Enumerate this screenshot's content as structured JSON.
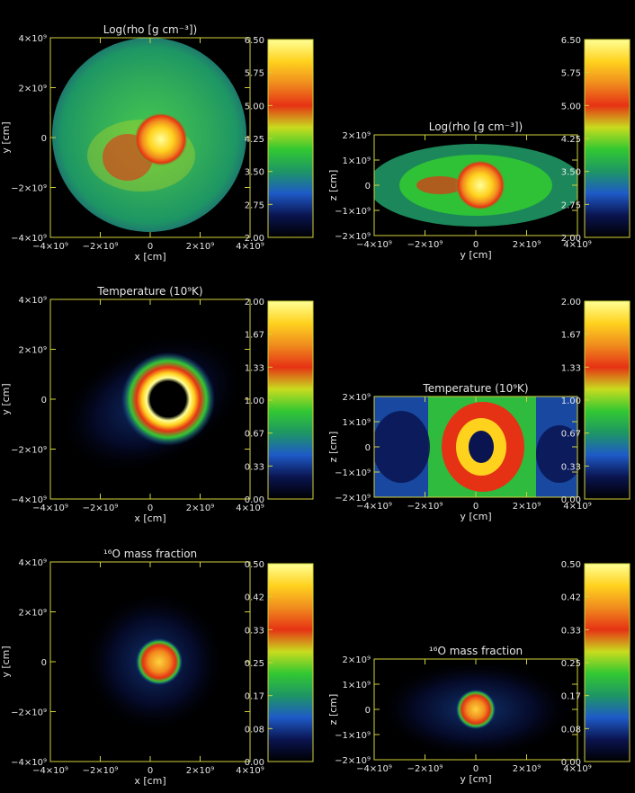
{
  "panels": [
    {
      "id": "density-xy",
      "title": "Log(rho [g cm⁻³])",
      "xlabel": "x [cm]",
      "ylabel": "y [cm]",
      "xticks": [
        "−4×10⁹",
        "−2×10⁹",
        "0",
        "2×10⁹",
        "4×10⁹"
      ],
      "yticks": [
        "4×10⁹",
        "2×10⁹",
        "0",
        "−2×10⁹",
        "−4×10⁹"
      ],
      "kind": "density-xy"
    },
    {
      "id": "density-yz",
      "title": "Log(rho [g cm⁻³])",
      "xlabel": "y [cm]",
      "ylabel": "z [cm]",
      "xticks": [
        "−4×10⁹",
        "−2×10⁹",
        "0",
        "2×10⁹",
        "4×10⁹"
      ],
      "yticks": [
        "2×10⁹",
        "1×10⁹",
        "0",
        "−1×10⁹",
        "−2×10⁹"
      ],
      "kind": "density-yz"
    },
    {
      "id": "temperature-xy",
      "title": "Temperature (10⁹K)",
      "xlabel": "x [cm]",
      "ylabel": "y [cm]",
      "xticks": [
        "−4×10⁹",
        "−2×10⁹",
        "0",
        "2×10⁹",
        "4×10⁹"
      ],
      "yticks": [
        "4×10⁹",
        "2×10⁹",
        "0",
        "−2×10⁹",
        "−4×10⁹"
      ],
      "kind": "temp-xy"
    },
    {
      "id": "temperature-yz",
      "title": "Temperature (10⁹K)",
      "xlabel": "y [cm]",
      "ylabel": "z [cm]",
      "xticks": [
        "−4×10⁹",
        "−2×10⁹",
        "0",
        "2×10⁹",
        "4×10⁹"
      ],
      "yticks": [
        "2×10⁹",
        "1×10⁹",
        "0",
        "−1×10⁹",
        "−2×10⁹"
      ],
      "kind": "temp-yz"
    },
    {
      "id": "oxygen-xy",
      "title": "¹⁶O mass fraction",
      "xlabel": "x [cm]",
      "ylabel": "y [cm]",
      "xticks": [
        "−4×10⁹",
        "−2×10⁹",
        "0",
        "2×10⁹",
        "4×10⁹"
      ],
      "yticks": [
        "4×10⁹",
        "2×10⁹",
        "0",
        "−2×10⁹",
        "−4×10⁹"
      ],
      "kind": "o-xy"
    },
    {
      "id": "oxygen-yz",
      "title": "¹⁶O mass fraction",
      "xlabel": "y [cm]",
      "ylabel": "z [cm]",
      "xticks": [
        "−4×10⁹",
        "−2×10⁹",
        "0",
        "2×10⁹",
        "4×10⁹"
      ],
      "yticks": [
        "2×10⁹",
        "1×10⁹",
        "0",
        "−1×10⁹",
        "−2×10⁹"
      ],
      "kind": "o-yz"
    }
  ],
  "colorbars": [
    {
      "id": "density-colorbar",
      "labels": [
        "6.50",
        "5.75",
        "5.00",
        "4.25",
        "3.50",
        "2.75",
        "2.00"
      ]
    },
    {
      "id": "temperature-colorbar",
      "labels": [
        "2.00",
        "1.67",
        "1.33",
        "1.00",
        "0.67",
        "0.33",
        "0.00"
      ]
    },
    {
      "id": "oxygen-colorbar",
      "labels": [
        "0.50",
        "0.42",
        "0.33",
        "0.25",
        "0.17",
        "0.08",
        "0.00"
      ]
    }
  ],
  "colormap": [
    "#000000",
    "#0a1450",
    "#1e5ac8",
    "#1e9664",
    "#32c832",
    "#c8dc1e",
    "#e63214",
    "#f08c1e",
    "#ffd21e",
    "#ffff96"
  ],
  "axis_color": "#d2d23c",
  "text_color": "#e6e6e6"
}
